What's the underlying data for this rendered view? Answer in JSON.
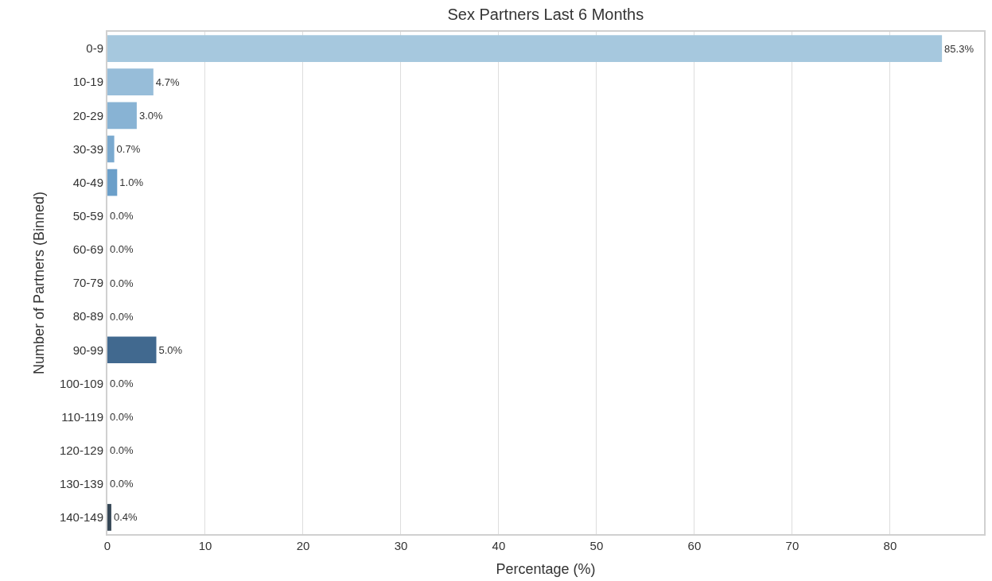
{
  "chart_data": {
    "type": "bar",
    "orientation": "horizontal",
    "title": "Sex Partners Last 6 Months",
    "xlabel": "Percentage (%)",
    "ylabel": "Number of Partners (Binned)",
    "categories": [
      "0-9",
      "10-19",
      "20-29",
      "30-39",
      "40-49",
      "50-59",
      "60-69",
      "70-79",
      "80-89",
      "90-99",
      "100-109",
      "110-119",
      "120-129",
      "130-139",
      "140-149"
    ],
    "values": [
      85.3,
      4.7,
      3.0,
      0.7,
      1.0,
      0.0,
      0.0,
      0.0,
      0.0,
      5.0,
      0.0,
      0.0,
      0.0,
      0.0,
      0.4
    ],
    "value_labels": [
      "85.3%",
      "4.7%",
      "3.0%",
      "0.7%",
      "1.0%",
      "0.0%",
      "0.0%",
      "0.0%",
      "0.0%",
      "5.0%",
      "0.0%",
      "0.0%",
      "0.0%",
      "0.0%",
      "0.4%"
    ],
    "colors": [
      "#a6c8de",
      "#97bdd9",
      "#88b3d4",
      "#7aa9cf",
      "#6b9fc9",
      "#6195c2",
      "#5a8bb8",
      "#5381ad",
      "#4c78a2",
      "#41698f",
      "#41668a",
      "#3d5e7d",
      "#3a5670",
      "#384e63",
      "#364756"
    ],
    "xlim": [
      0,
      89.6
    ],
    "xticks": [
      0,
      10,
      20,
      30,
      40,
      50,
      60,
      70,
      80
    ],
    "grid": "x"
  }
}
